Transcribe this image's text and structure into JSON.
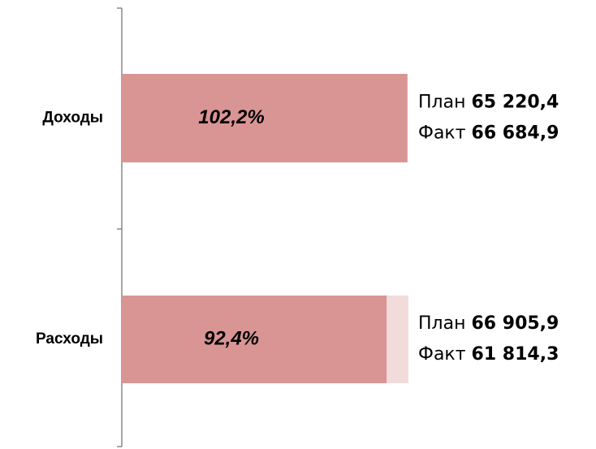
{
  "chart_data": {
    "type": "bar",
    "orientation": "horizontal",
    "categories": [
      "Доходы",
      "Расходы"
    ],
    "series": [
      {
        "name": "План",
        "color": "#f2dcdb",
        "values": [
          65220.4,
          66905.9
        ],
        "value_labels": [
          "65 220,4",
          "66 905,9"
        ]
      },
      {
        "name": "Факт",
        "color": "#d99594",
        "values": [
          66684.9,
          61814.3
        ],
        "value_labels": [
          "66 684,9",
          "61 814,3"
        ]
      }
    ],
    "ratios": [
      102.2,
      92.4
    ],
    "ratio_labels": [
      "102,2%",
      "92,4%"
    ]
  }
}
